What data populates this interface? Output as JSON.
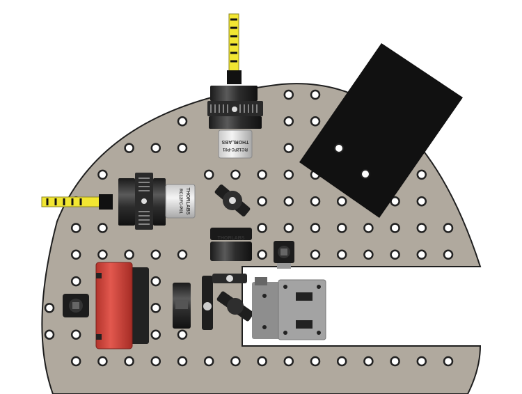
{
  "scene": {
    "lens_tube_top": {
      "brand": "THORLABS",
      "part": "RC12FC-P01"
    },
    "lens_tube_left": {
      "brand": "THORLABS",
      "part": "RC12FC-P01"
    },
    "beam_block_label": "THORLABS"
  },
  "colors": {
    "breadboard": "#b0a99e",
    "breadboard_edge": "#1e1e1e",
    "hole": "#ffffff",
    "mount": "#2a2a2a",
    "fiber_cable": "#f2e632",
    "red_component": "#d0463c",
    "translation_stage": "#a3a3a3",
    "panel": "#111111"
  },
  "icons": {
    "fiber": "fiber-cable-icon",
    "mount": "kinematic-mount-icon",
    "stage": "translation-stage-icon"
  }
}
